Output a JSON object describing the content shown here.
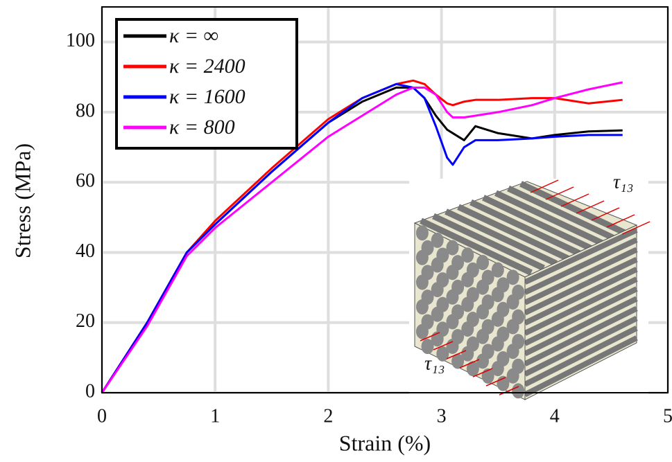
{
  "chart_data": {
    "type": "line",
    "xlabel": "Strain (%)",
    "ylabel": "Stress (MPa)",
    "x": [
      0,
      0.4,
      0.75,
      1,
      1.5,
      2,
      2.3,
      2.6,
      2.75,
      2.85,
      2.95,
      3.05,
      3.1,
      3.2,
      3.3,
      3.5,
      3.8,
      4,
      4.3,
      4.6
    ],
    "series": [
      {
        "name": "κ = ∞",
        "color": "#000000",
        "values": [
          0,
          20,
          40,
          48,
          63,
          77,
          83,
          87,
          87,
          84,
          79,
          75,
          74,
          72,
          76,
          74,
          72.5,
          73.5,
          74.5,
          74.8
        ]
      },
      {
        "name": "κ = 2400",
        "color": "#ff0000",
        "values": [
          0,
          20,
          40,
          49,
          64,
          78,
          84,
          88,
          89,
          88,
          85,
          82.5,
          82,
          83,
          83.5,
          83.5,
          84,
          84,
          82.5,
          83.5
        ]
      },
      {
        "name": "κ = 1600",
        "color": "#0000ff",
        "values": [
          0,
          20,
          40,
          48,
          63,
          77,
          84,
          88,
          87,
          84,
          76,
          67,
          65,
          70,
          72,
          72,
          72.5,
          73,
          73.5,
          73.5
        ]
      },
      {
        "name": "κ = 800",
        "color": "#ff00ff",
        "values": [
          0,
          19,
          39,
          47,
          60,
          73,
          79,
          85,
          87,
          87,
          85,
          80,
          78.5,
          78.5,
          79,
          80,
          82,
          84,
          86.5,
          88.5
        ]
      }
    ],
    "xlim": [
      0,
      5
    ],
    "xticks": [
      0,
      1,
      2,
      3,
      4,
      5
    ],
    "ylim": [
      0,
      110
    ],
    "yticks": [
      0,
      20,
      40,
      60,
      80,
      100
    ],
    "grid": true,
    "legend": "upper left",
    "annotations": [
      "τ₁₃",
      "τ₁₃"
    ]
  }
}
